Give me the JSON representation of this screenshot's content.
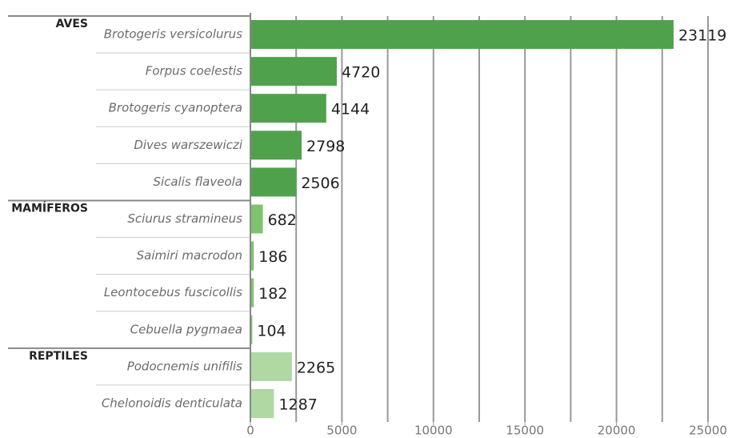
{
  "chart_data": {
    "type": "hbar",
    "series": [
      {
        "name": "AVES",
        "color": "#4fa24b",
        "categories": [
          "Brotogeris versicolurus",
          "Forpus coelestis",
          "Brotogeris cyanoptera",
          "Dives warszewiczi",
          "Sicalis flaveola"
        ],
        "values": [
          23119,
          4720,
          4144,
          2798,
          2506
        ]
      },
      {
        "name": "MAMÍFEROS",
        "color": "#7ec36f",
        "categories": [
          "Sciurus stramineus",
          "Saimiri macrodon",
          "Leontocebus fuscicollis",
          "Cebuella pygmaea"
        ],
        "values": [
          682,
          186,
          182,
          104
        ]
      },
      {
        "name": "REPTILES",
        "color": "#afd8a2",
        "categories": [
          "Podocnemis unifilis",
          "Chelonoidis denticulata"
        ],
        "values": [
          2265,
          1287
        ]
      }
    ],
    "xlim": [
      0,
      25000
    ],
    "xticks": [
      0,
      5000,
      10000,
      15000,
      20000,
      25000
    ],
    "grid_xticks": [
      2500,
      5000,
      7500,
      10000,
      12500,
      15000,
      17500,
      20000,
      22500,
      25000
    ],
    "grid": true
  }
}
